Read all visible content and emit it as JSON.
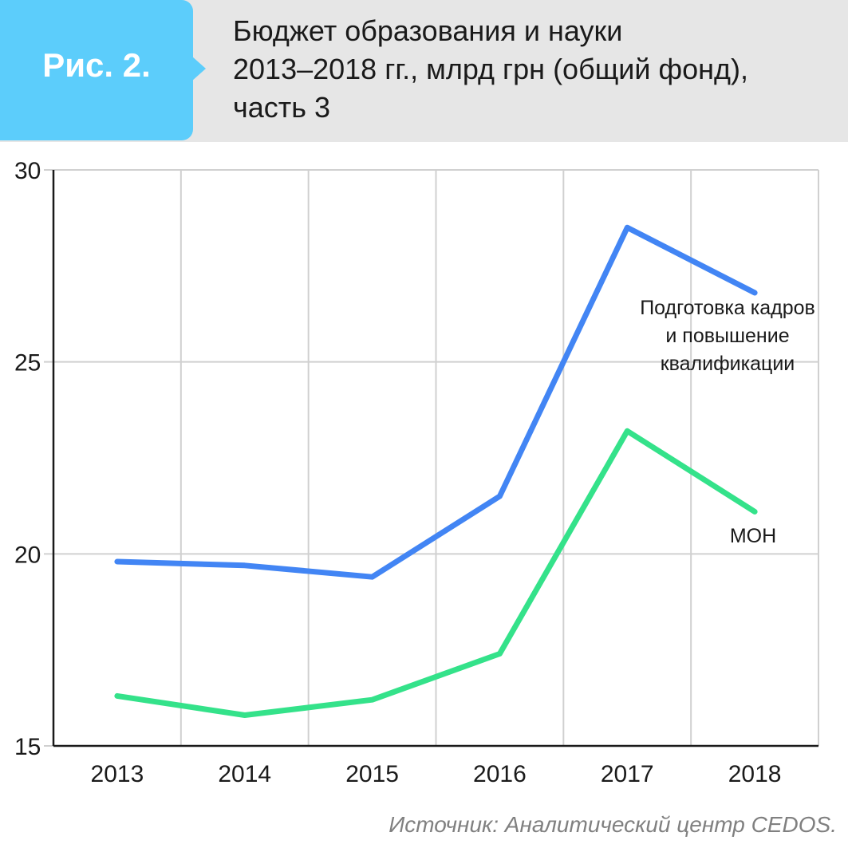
{
  "header": {
    "figure_label": "Рис. 2.",
    "title_lines": [
      "Бюджет образования и науки",
      "2013–2018 гг., млрд грн (общий фонд),",
      "часть 3"
    ]
  },
  "chart_data": {
    "type": "line",
    "title": "Бюджет образования и науки 2013–2018 гг., млрд грн (общий фонд), часть 3",
    "x": [
      "2013",
      "2014",
      "2015",
      "2016",
      "2017",
      "2018"
    ],
    "yticks": [
      "15",
      "20",
      "25",
      "30"
    ],
    "ylim": [
      15,
      30
    ],
    "grid": true,
    "series": [
      {
        "name_lines": [
          "Подготовка кадров",
          "и повышение",
          "квалификации"
        ],
        "values": [
          19.8,
          19.7,
          19.4,
          21.5,
          28.5,
          26.8
        ],
        "color": "#4285f4"
      },
      {
        "name_lines": [
          "МОН"
        ],
        "values": [
          16.3,
          15.8,
          16.2,
          17.4,
          23.2,
          21.1
        ],
        "color": "#34e28a"
      }
    ]
  },
  "source": "Источник: Аналитический центр CEDOS."
}
